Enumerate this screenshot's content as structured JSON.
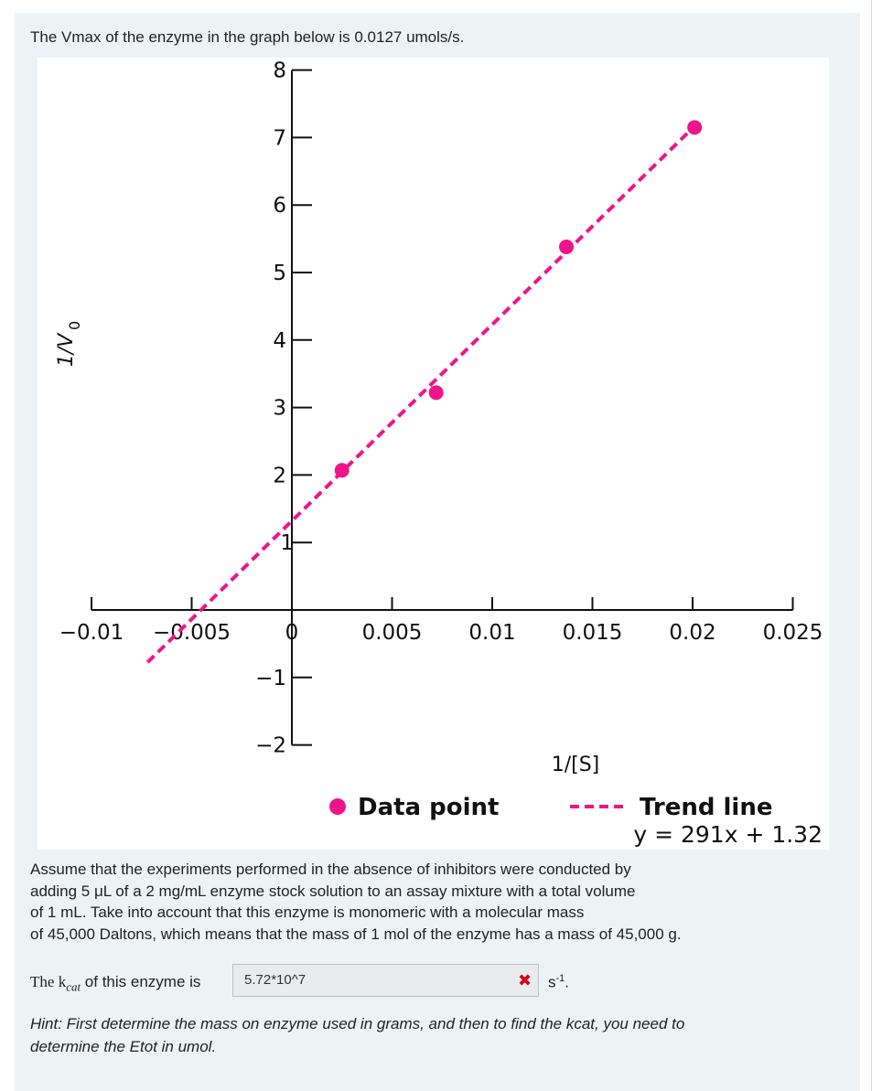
{
  "intro_text": "The Vmax of the enzyme in the graph below is 0.0127 umols/s.",
  "chart_data": {
    "type": "scatter",
    "x_tick_labels": [
      "−0.01",
      "−0.005",
      "0",
      "0.005",
      "0.01",
      "0.015",
      "0.02",
      "0.025"
    ],
    "x_ticks": [
      -0.01,
      -0.005,
      0,
      0.005,
      0.01,
      0.015,
      0.02,
      0.025
    ],
    "y_tick_labels": [
      "8",
      "7",
      "6",
      "5",
      "4",
      "3",
      "2",
      "1",
      "−1",
      "−2"
    ],
    "y_ticks": [
      8,
      7,
      6,
      5,
      4,
      3,
      2,
      1,
      -1,
      -2
    ],
    "xlim": [
      -0.01,
      0.025
    ],
    "ylim": [
      -2,
      8
    ],
    "xlabel": "1/[S]",
    "ylabel_main": "1/V",
    "ylabel_sub": "0",
    "points": [
      {
        "x": 0.0025,
        "y": 2.07
      },
      {
        "x": 0.0072,
        "y": 3.22
      },
      {
        "x": 0.0137,
        "y": 5.38
      },
      {
        "x": 0.0201,
        "y": 7.15
      }
    ],
    "trend_line": {
      "slope": 291,
      "intercept": 1.32,
      "x_range": [
        -0.0072,
        0.0201
      ]
    },
    "legend": {
      "data_point": "Data point",
      "trend_line": "Trend line",
      "equation": "y = 291x + 1.32"
    },
    "colors": {
      "marker": "#f0148c",
      "line": "#f0148c",
      "axis": "#111111"
    }
  },
  "assumption_lines": [
    "Assume that the experiments performed in the absence of inhibitors were conducted by",
    "adding 5 μL of a 2 mg/mL enzyme stock solution to an assay mixture with a total volume",
    "of 1 mL. Take into account that this enzyme is monomeric with a molecular mass",
    "of 45,000 Daltons, which means that the mass of 1 mol of the enzyme has a mass of 45,000 g."
  ],
  "kcat": {
    "label_prefix": "The ",
    "label_k": "k",
    "label_sub": "cat",
    "label_suffix": " of this enzyme is",
    "answer_value": "5.72*10^7",
    "status_icon": "close-icon",
    "unit_base": "s",
    "unit_exp": "-1",
    "unit_end": "."
  },
  "hint_lines": [
    "Hint: First determine the mass on enzyme used in grams, and then to find the kcat, you need to",
    "determine the Etot in umol."
  ]
}
